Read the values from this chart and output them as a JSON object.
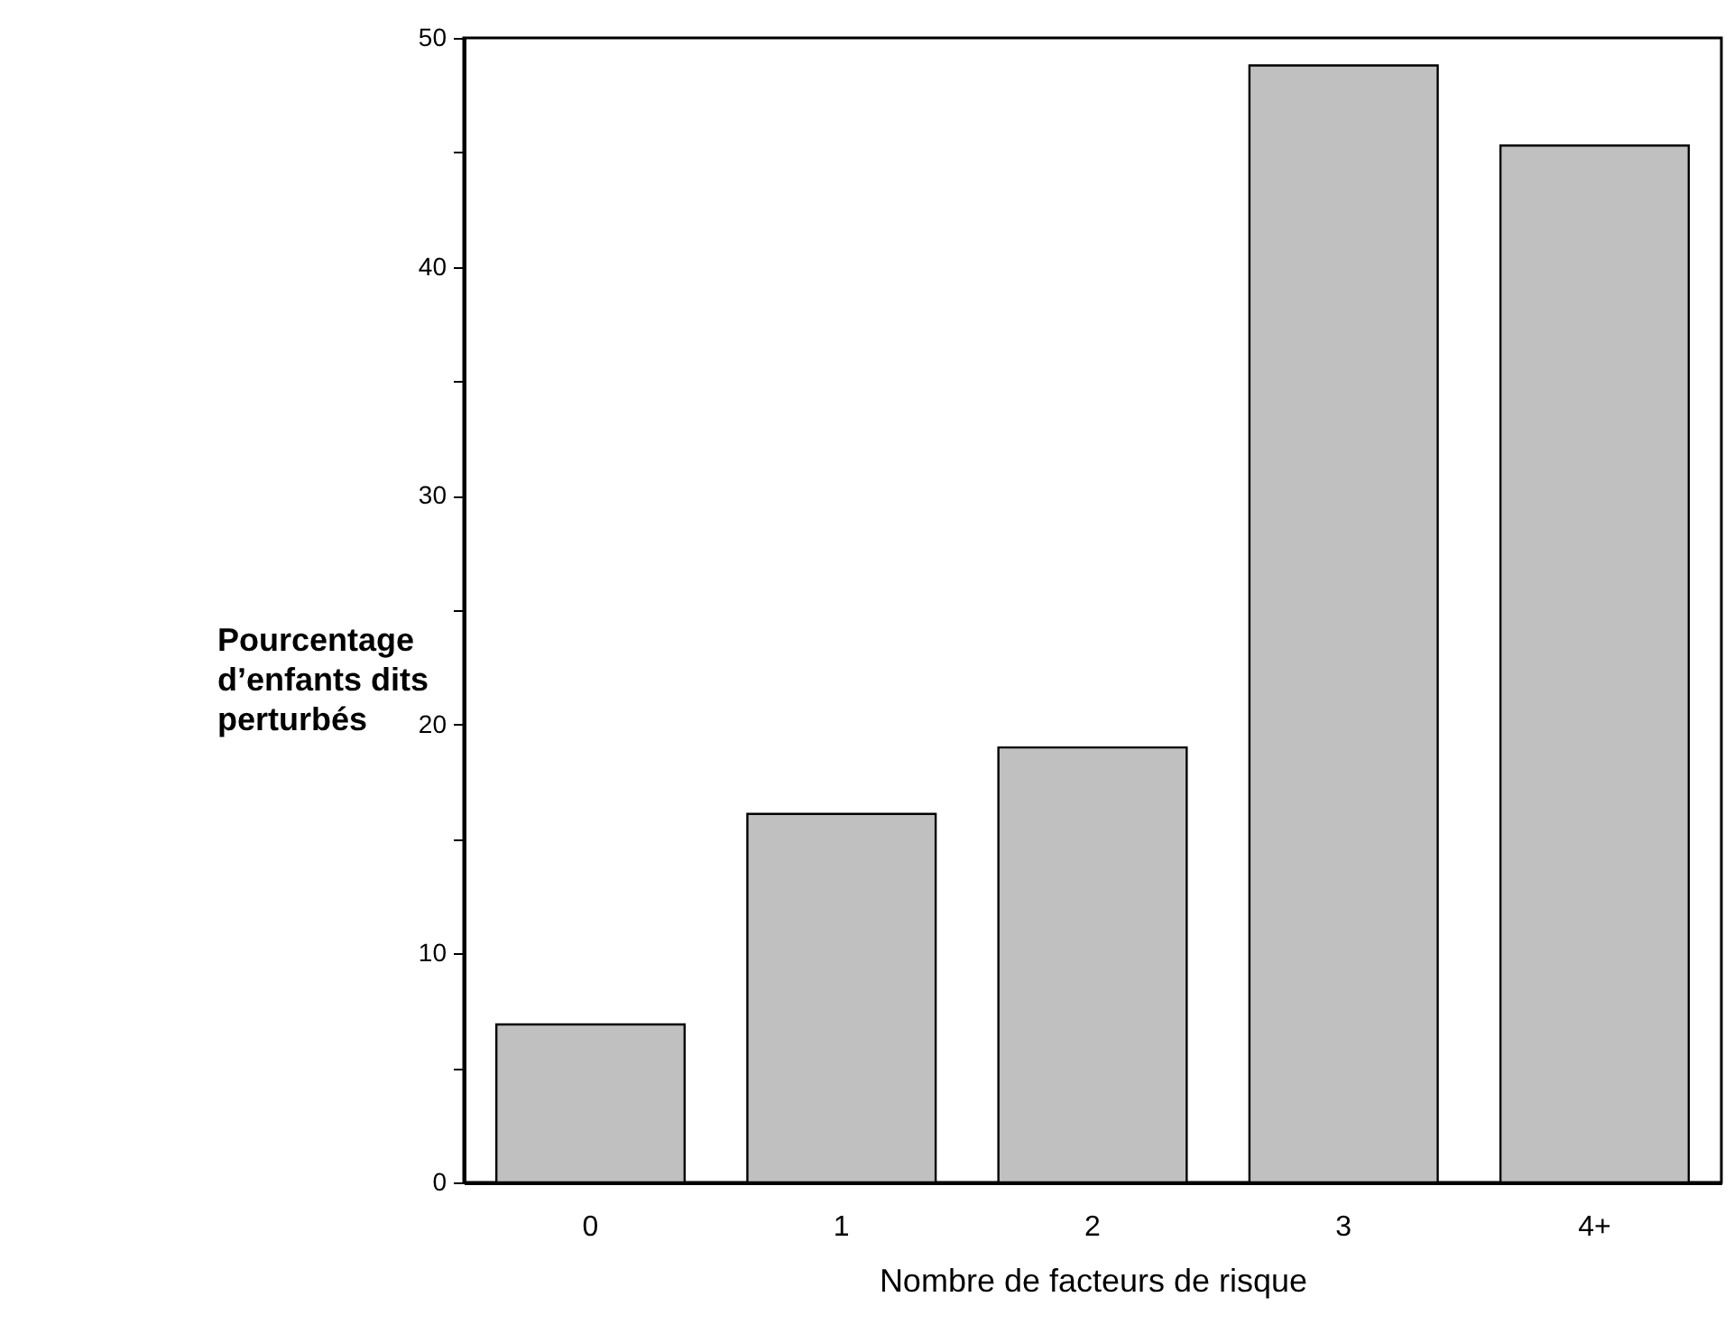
{
  "chart_data": {
    "type": "bar",
    "xlabel": "Nombre de facteurs de risque",
    "ylabel": "Pourcentage\nd’enfants dits\nperturbés",
    "categories": [
      "0",
      "1",
      "2",
      "3",
      "4+"
    ],
    "values": [
      6.9,
      16.1,
      19.0,
      48.8,
      45.3
    ],
    "color": "#c0c0c0",
    "ylim": [
      0,
      50
    ],
    "yticks": [
      0,
      {
        "value": 5,
        "label": null
      },
      10,
      {
        "value": 15,
        "label": null
      },
      20,
      {
        "value": 25,
        "label": null
      },
      30,
      {
        "value": 35,
        "label": null
      },
      40,
      {
        "value": 45,
        "label": null
      },
      50
    ],
    "grid": false
  }
}
